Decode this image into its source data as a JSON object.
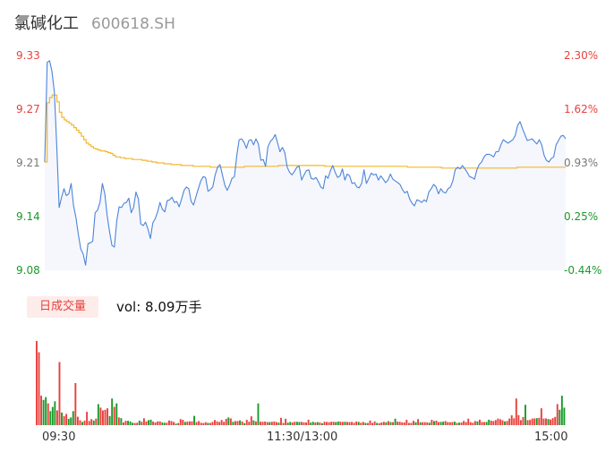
{
  "header": {
    "name": "氯碱化工",
    "code": "600618.SH"
  },
  "colors": {
    "up": "#e8413c",
    "down": "#1a9a2a",
    "price_line": "#4b84d9",
    "avg_line": "#f2b731",
    "area_fill": "#f5f7fd"
  },
  "volume_panel": {
    "tab_label": "日成交量",
    "summary_text": "vol: 8.09万手"
  },
  "chart_data": [
    {
      "type": "line",
      "title": "",
      "x_range": [
        "09:30",
        "15:00"
      ],
      "x_tick_labels": [
        "09:30",
        "11:30/13:00",
        "15:00"
      ],
      "y_tick_labels": [
        "9.33",
        "9.27",
        "9.21",
        "9.14",
        "9.08"
      ],
      "y_percent_labels": [
        "2.30%",
        "1.62%",
        "0.93%",
        "0.25%",
        "-0.44%"
      ],
      "ylim": [
        9.08,
        9.33
      ],
      "series": [
        {
          "key": "price",
          "values": [
            9.206,
            9.322,
            9.324,
            9.312,
            9.288,
            9.225,
            9.153,
            9.165,
            9.175,
            9.167,
            9.169,
            9.181,
            9.155,
            9.141,
            9.122,
            9.105,
            9.099,
            9.086,
            9.111,
            9.112,
            9.114,
            9.147,
            9.15,
            9.159,
            9.181,
            9.169,
            9.144,
            9.125,
            9.109,
            9.107,
            9.138,
            9.154,
            9.153,
            9.158,
            9.159,
            9.164,
            9.147,
            9.153,
            9.171,
            9.163,
            9.134,
            9.132,
            9.136,
            9.128,
            9.117,
            9.135,
            9.14,
            9.148,
            9.159,
            9.151,
            9.148,
            9.161,
            9.162,
            9.165,
            9.159,
            9.16,
            9.154,
            9.163,
            9.173,
            9.177,
            9.175,
            9.16,
            9.156,
            9.166,
            9.175,
            9.184,
            9.189,
            9.188,
            9.172,
            9.174,
            9.177,
            9.191,
            9.2,
            9.203,
            9.191,
            9.179,
            9.173,
            9.179,
            9.187,
            9.189,
            9.214,
            9.232,
            9.233,
            9.229,
            9.222,
            9.231,
            9.232,
            9.226,
            9.233,
            9.227,
            9.208,
            9.209,
            9.201,
            9.224,
            9.23,
            9.233,
            9.238,
            9.228,
            9.218,
            9.223,
            9.217,
            9.2,
            9.194,
            9.191,
            9.195,
            9.2,
            9.201,
            9.185,
            9.191,
            9.196,
            9.197,
            9.187,
            9.186,
            9.188,
            9.183,
            9.177,
            9.175,
            9.19,
            9.187,
            9.196,
            9.202,
            9.194,
            9.188,
            9.19,
            9.198,
            9.185,
            9.192,
            9.19,
            9.181,
            9.182,
            9.177,
            9.176,
            9.181,
            9.197,
            9.181,
            9.187,
            9.193,
            9.191,
            9.192,
            9.185,
            9.19,
            9.186,
            9.182,
            9.185,
            9.192,
            9.186,
            9.184,
            9.182,
            9.18,
            9.174,
            9.17,
            9.172,
            9.163,
            9.158,
            9.155,
            9.162,
            9.161,
            9.159,
            9.162,
            9.16,
            9.171,
            9.175,
            9.18,
            9.177,
            9.169,
            9.175,
            9.171,
            9.17,
            9.175,
            9.177,
            9.184,
            9.197,
            9.2,
            9.198,
            9.202,
            9.198,
            9.194,
            9.189,
            9.188,
            9.186,
            9.197,
            9.203,
            9.206,
            9.212,
            9.215,
            9.215,
            9.214,
            9.212,
            9.218,
            9.218,
            9.226,
            9.232,
            9.23,
            9.228,
            9.23,
            9.232,
            9.237,
            9.249,
            9.253,
            9.245,
            9.238,
            9.231,
            9.232,
            9.233,
            9.23,
            9.227,
            9.232,
            9.226,
            9.214,
            9.208,
            9.206,
            9.21,
            9.212,
            9.226,
            9.231,
            9.236,
            9.237,
            9.233
          ]
        },
        {
          "key": "average",
          "values": [
            9.206,
            9.275,
            9.281,
            9.284,
            9.284,
            9.276,
            9.264,
            9.258,
            9.255,
            9.253,
            9.251,
            9.249,
            9.246,
            9.243,
            9.24,
            9.236,
            9.232,
            9.228,
            9.226,
            9.224,
            9.222,
            9.221,
            9.22,
            9.219,
            9.219,
            9.218,
            9.217,
            9.216,
            9.214,
            9.212,
            9.212,
            9.211,
            9.211,
            9.21,
            9.21,
            9.21,
            9.209,
            9.209,
            9.209,
            9.209,
            9.208,
            9.208,
            9.207,
            9.207,
            9.206,
            9.206,
            9.205,
            9.205,
            9.205,
            9.204,
            9.204,
            9.204,
            9.203,
            9.203,
            9.203,
            9.203,
            9.202,
            9.202,
            9.202,
            9.202,
            9.202,
            9.201,
            9.201,
            9.201,
            9.201,
            9.201,
            9.201,
            9.201,
            9.2,
            9.2,
            9.2,
            9.2,
            9.2,
            9.2,
            9.2,
            9.2,
            9.2,
            9.2,
            9.2,
            9.2,
            9.2,
            9.2,
            9.201,
            9.201,
            9.201,
            9.201,
            9.201,
            9.201,
            9.201,
            9.201,
            9.201,
            9.201,
            9.201,
            9.201,
            9.201,
            9.201,
            9.202,
            9.202,
            9.202,
            9.202,
            9.202,
            9.202,
            9.202,
            9.202,
            9.202,
            9.202,
            9.202,
            9.202,
            9.202,
            9.202,
            9.202,
            9.202,
            9.202,
            9.202,
            9.202,
            9.201,
            9.201,
            9.201,
            9.201,
            9.201,
            9.201,
            9.201,
            9.201,
            9.201,
            9.201,
            9.201,
            9.201,
            9.201,
            9.201,
            9.201,
            9.201,
            9.201,
            9.201,
            9.201,
            9.201,
            9.201,
            9.201,
            9.201,
            9.201,
            9.201,
            9.201,
            9.201,
            9.201,
            9.201,
            9.201,
            9.201,
            9.201,
            9.201,
            9.201,
            9.2,
            9.2,
            9.2,
            9.2,
            9.2,
            9.2,
            9.2,
            9.2,
            9.2,
            9.2,
            9.2,
            9.2,
            9.2,
            9.2,
            9.199,
            9.199,
            9.199,
            9.199,
            9.199,
            9.199,
            9.199,
            9.199,
            9.199,
            9.199,
            9.199,
            9.199,
            9.199,
            9.199,
            9.199,
            9.199,
            9.199,
            9.199,
            9.199,
            9.199,
            9.199,
            9.199,
            9.199,
            9.199,
            9.199,
            9.199,
            9.199,
            9.199,
            9.199,
            9.199,
            9.199,
            9.2,
            9.2,
            9.2,
            9.2,
            9.2,
            9.2,
            9.2,
            9.2,
            9.2,
            9.2,
            9.2,
            9.2,
            9.2,
            9.2,
            9.2,
            9.2,
            9.2,
            9.2,
            9.2,
            9.2,
            9.2
          ]
        }
      ]
    },
    {
      "type": "bar",
      "title": "",
      "x_range": [
        "09:30",
        "15:00"
      ],
      "series": [
        {
          "key": "volume",
          "values": [
            6000,
            5200,
            2100,
            1800,
            2000,
            1550,
            1000,
            1300,
            1700,
            1050,
            4500,
            900,
            650,
            800,
            450,
            550,
            1000,
            3000,
            600,
            350,
            230,
            320,
            950,
            300,
            430,
            330,
            470,
            1500,
            1250,
            1050,
            1100,
            1200,
            650,
            1900,
            1300,
            1550,
            550,
            500,
            190,
            310,
            310,
            260,
            170,
            150,
            170,
            320,
            240,
            490,
            260,
            360,
            390,
            250,
            190,
            270,
            270,
            190,
            170,
            170,
            330,
            290,
            230,
            110,
            150,
            430,
            380,
            230,
            250,
            270,
            270,
            660,
            220,
            290,
            170,
            150,
            210,
            160,
            160,
            230,
            370,
            270,
            230,
            370,
            240,
            450,
            550,
            480,
            240,
            290,
            290,
            340,
            260,
            140,
            380,
            240,
            630,
            340,
            260,
            1550,
            240,
            240,
            260,
            220,
            220,
            240,
            260,
            220,
            180,
            520,
            160,
            450,
            180,
            230,
            190,
            240,
            240,
            230,
            230,
            200,
            190,
            390,
            180,
            240,
            190,
            220,
            190,
            130,
            240,
            230,
            210,
            240,
            240,
            220,
            260,
            250,
            230,
            240,
            230,
            220,
            230,
            170,
            260,
            230,
            170,
            230,
            160,
            150,
            330,
            160,
            270,
            160,
            140,
            190,
            240,
            200,
            290,
            220,
            210,
            460,
            250,
            240,
            200,
            190,
            380,
            160,
            160,
            310,
            210,
            430,
            200,
            210,
            210,
            200,
            170,
            380,
            290,
            320,
            220,
            230,
            250,
            290,
            220,
            210,
            220,
            250,
            160,
            180,
            190,
            300,
            220,
            460,
            210,
            170,
            290,
            270,
            390,
            230,
            220,
            230,
            390,
            320,
            290,
            360,
            470,
            420,
            350,
            260,
            300,
            470,
            700,
            490,
            1900,
            720,
            360,
            580,
            1450,
            360,
            370,
            470,
            480,
            500,
            520,
            1200,
            470,
            480,
            440,
            400,
            500,
            590,
            1500,
            1100,
            2100,
            1250
          ],
          "directions": [
            "u",
            "u",
            "u",
            "d",
            "d",
            "u",
            "d",
            "d",
            "d",
            "u",
            "u",
            "d",
            "u",
            "u",
            "d",
            "d",
            "d",
            "u",
            "u",
            "u",
            "d",
            "u",
            "u",
            "u",
            "u",
            "d",
            "u",
            "d",
            "u",
            "u",
            "u",
            "u",
            "d",
            "d",
            "u",
            "d",
            "u",
            "d",
            "u",
            "u",
            "d",
            "d",
            "d",
            "u",
            "u",
            "d",
            "u",
            "u",
            "u",
            "d",
            "d",
            "u",
            "u",
            "u",
            "u",
            "d",
            "d",
            "u",
            "u",
            "u",
            "u",
            "d",
            "u",
            "u",
            "u",
            "d",
            "u",
            "u",
            "u",
            "d",
            "u",
            "u",
            "u",
            "u",
            "u",
            "d",
            "u",
            "u",
            "u",
            "u",
            "u",
            "u",
            "u",
            "u",
            "d",
            "u",
            "d",
            "u",
            "u",
            "d",
            "u",
            "d",
            "u",
            "u",
            "u",
            "d",
            "u",
            "d",
            "u",
            "u",
            "u",
            "u",
            "d",
            "u",
            "u",
            "u",
            "d",
            "u",
            "u",
            "u",
            "d",
            "d",
            "u",
            "u",
            "d",
            "d",
            "u",
            "u",
            "u",
            "u",
            "d",
            "d",
            "u",
            "d",
            "u",
            "d",
            "u",
            "u",
            "u",
            "u",
            "u",
            "d",
            "d",
            "u",
            "u",
            "d",
            "u",
            "u",
            "u",
            "u",
            "u",
            "d",
            "u",
            "u",
            "d",
            "u",
            "u",
            "u",
            "u",
            "d",
            "u",
            "u",
            "u",
            "d",
            "u",
            "d",
            "u",
            "d",
            "u",
            "u",
            "u",
            "u",
            "u",
            "u",
            "u",
            "u",
            "d",
            "u",
            "d",
            "u",
            "u",
            "u",
            "d",
            "u",
            "d",
            "u",
            "u",
            "d",
            "d",
            "u",
            "u",
            "u",
            "u",
            "d",
            "u",
            "d",
            "u",
            "u",
            "u",
            "u",
            "u",
            "u",
            "u",
            "d",
            "u",
            "u",
            "u",
            "d",
            "d",
            "u",
            "u",
            "u",
            "u",
            "u",
            "u",
            "d",
            "u",
            "u",
            "u",
            "u",
            "u",
            "u",
            "u",
            "u",
            "d",
            "u",
            "u",
            "u",
            "u",
            "d",
            "u",
            "u",
            "u",
            "u",
            "d",
            "u",
            "u",
            "u",
            "u"
          ]
        }
      ]
    }
  ]
}
